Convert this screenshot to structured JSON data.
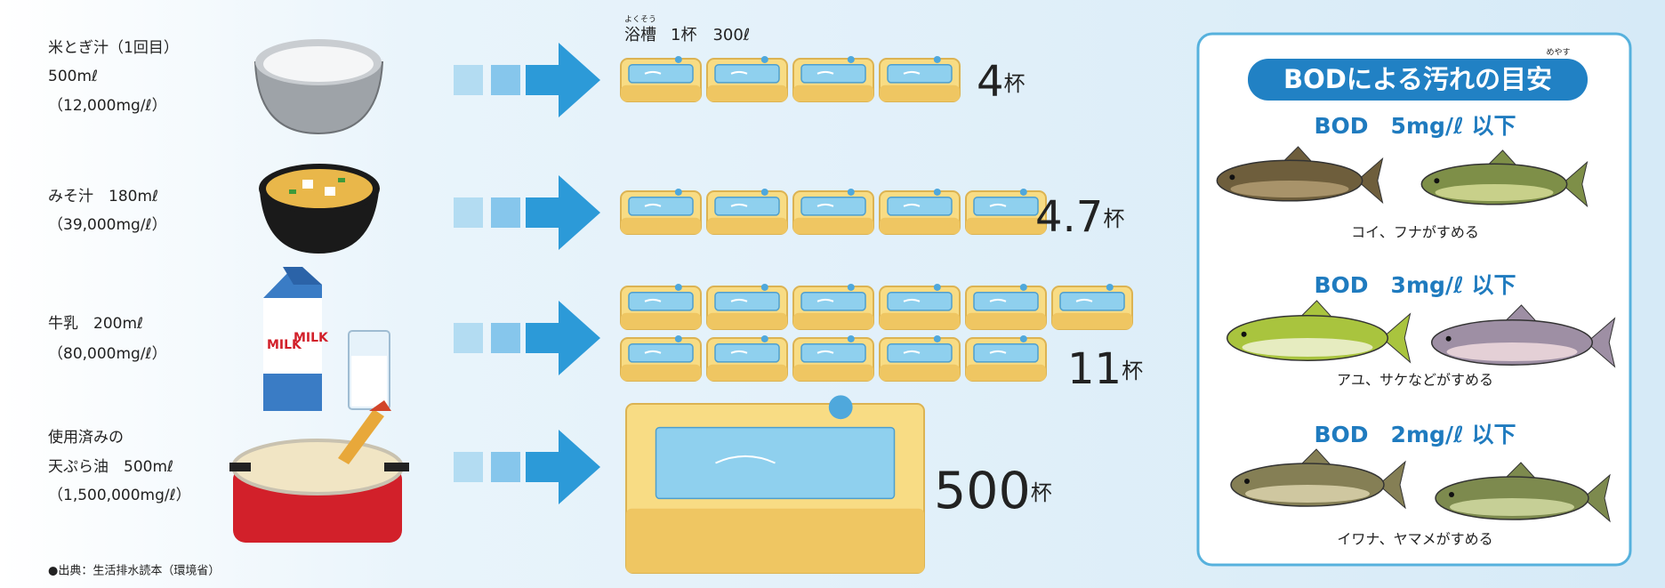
{
  "bath_ruby": "よくそう",
  "bath_label": "浴槽",
  "bath_capacity": "1杯　300ℓ",
  "rows": [
    {
      "lines": [
        "米とぎ汁（1回目）",
        "500mℓ",
        "（12,000mg/ℓ）"
      ],
      "count": 4,
      "unit": "杯"
    },
    {
      "lines": [
        "みそ汁　180mℓ",
        "（39,000mg/ℓ）"
      ],
      "count": 4.7,
      "unit": "杯"
    },
    {
      "lines": [
        "牛乳　200mℓ",
        "（80,000mg/ℓ）"
      ],
      "count": 11,
      "unit": "杯",
      "carton_label": "MILK"
    },
    {
      "lines": [
        "使用済みの",
        "天ぷら油　500mℓ",
        "（1,500,000mg/ℓ）"
      ],
      "count": 500,
      "unit": "杯"
    }
  ],
  "source": "●出典：生活排水読本（環境省）",
  "panel": {
    "title_main": "BODによる汚れの",
    "title_emph": "目安",
    "title_ruby": "めやす",
    "levels": [
      {
        "label": "BOD　5mg/ℓ 以下",
        "caption": "コイ、フナがすめる"
      },
      {
        "label": "BOD　3mg/ℓ 以下",
        "caption": "アユ、サケなどがすめる"
      },
      {
        "label": "BOD　2mg/ℓ 以下",
        "caption": "イワナ、ヤマメがすめる"
      }
    ]
  }
}
